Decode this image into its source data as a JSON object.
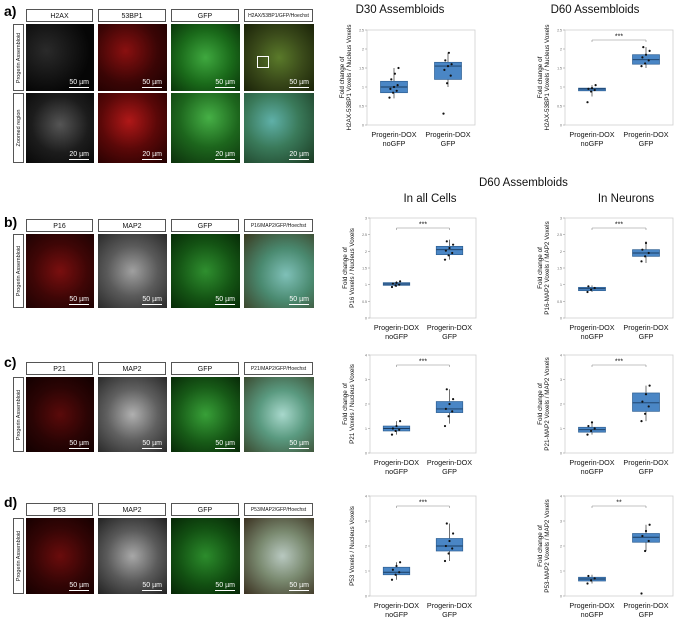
{
  "panel_labels": {
    "a": "a)",
    "b": "b)",
    "c": "c)",
    "d": "d)"
  },
  "section_title": "D60 Assembloids",
  "row_a": {
    "headers": [
      "H2AX",
      "53BP1",
      "GFP",
      "H2AX/53BP1/GFP/Hoechst"
    ],
    "row_labels": [
      "Progerin Assembloid",
      "Zoomed region"
    ],
    "scale_top": [
      "50 µm",
      "50 µm",
      "50 µm",
      "50 µm"
    ],
    "scale_bottom": [
      "20 µm",
      "20 µm",
      "20 µm",
      "20 µm"
    ]
  },
  "row_b": {
    "headers": [
      "P16",
      "MAP2",
      "GFP",
      "P16/MAP2/GFP/Hoechst"
    ],
    "row_label": "Progerin Assembloid",
    "scale": [
      "50 µm",
      "50 µm",
      "50 µm",
      "50 µm"
    ]
  },
  "row_c": {
    "headers": [
      "P21",
      "MAP2",
      "GFP",
      "P21/MAP2/GFP/Hoechst"
    ],
    "row_label": "Progerin Assembloid",
    "scale": [
      "50 µm",
      "50 µm",
      "50 µm",
      "50 µm"
    ]
  },
  "row_d": {
    "headers": [
      "P53",
      "MAP2",
      "GFP",
      "P53/MAP2/GFP/Hoechst"
    ],
    "row_label": "Progerin Assembloid",
    "scale": [
      "50 µm",
      "50 µm",
      "50 µm",
      "50 µm"
    ]
  },
  "colors": {
    "box_fill": "#4a86c5",
    "box_edge": "#2d5f93",
    "point": "#111111"
  },
  "chart_data": [
    {
      "id": "a_d30",
      "type": "box",
      "title": "D30 Assembloids",
      "ylabel": [
        "Fold change of",
        "H2AX-53BP1 Voxels / Nucleus Voxels"
      ],
      "categories": [
        "Progerin-DOX noGFP",
        "Progerin-DOX GFP"
      ],
      "ylim": [
        0,
        2.5
      ],
      "yticks": [
        0,
        0.5,
        1,
        1.5,
        2,
        2.5
      ],
      "significance": "",
      "boxes": [
        {
          "q1": 0.85,
          "median": 1.0,
          "q3": 1.15,
          "whisker_low": 0.7,
          "whisker_high": 1.5,
          "points": [
            0.72,
            0.85,
            0.9,
            0.95,
            1.0,
            1.05,
            1.2,
            1.35,
            1.5
          ]
        },
        {
          "q1": 1.2,
          "median": 1.55,
          "q3": 1.65,
          "whisker_low": 1.0,
          "whisker_high": 1.9,
          "points": [
            0.3,
            1.1,
            1.3,
            1.45,
            1.55,
            1.6,
            1.7,
            1.9
          ]
        }
      ]
    },
    {
      "id": "a_d60",
      "type": "box",
      "title": "D60 Assembloids",
      "ylabel": [
        "Fold change of",
        "H2AX-53BP1 Voxels / Nucleus Voxels"
      ],
      "categories": [
        "Progerin-DOX noGFP",
        "Progerin-DOX GFP"
      ],
      "ylim": [
        0,
        2.5
      ],
      "yticks": [
        0,
        0.5,
        1,
        1.5,
        2,
        2.5
      ],
      "significance": "***",
      "boxes": [
        {
          "q1": 0.9,
          "median": 0.95,
          "q3": 0.97,
          "whisker_low": 0.75,
          "whisker_high": 1.05,
          "points": [
            0.6,
            0.88,
            0.92,
            0.95,
            0.97,
            1.05
          ]
        },
        {
          "q1": 1.6,
          "median": 1.72,
          "q3": 1.85,
          "whisker_low": 1.5,
          "whisker_high": 2.05,
          "points": [
            1.55,
            1.62,
            1.7,
            1.78,
            1.85,
            1.95,
            2.05
          ]
        }
      ]
    },
    {
      "id": "b_all",
      "type": "box",
      "title": "In all Cells",
      "ylabel": [
        "Fold change of",
        "P16 Voxels / Nucleus Voxels"
      ],
      "categories": [
        "Progerin-DOX noGFP",
        "Progerin-DOX GFP"
      ],
      "ylim": [
        0,
        3.0
      ],
      "yticks": [
        0,
        0.5,
        1,
        1.5,
        2,
        2.5,
        3
      ],
      "significance": "***",
      "boxes": [
        {
          "q1": 0.98,
          "median": 1.02,
          "q3": 1.06,
          "whisker_low": 0.93,
          "whisker_high": 1.1,
          "points": [
            0.93,
            0.97,
            1.0,
            1.03,
            1.06,
            1.1
          ]
        },
        {
          "q1": 1.9,
          "median": 2.05,
          "q3": 2.15,
          "whisker_low": 1.75,
          "whisker_high": 2.35,
          "points": [
            1.75,
            1.88,
            1.95,
            2.02,
            2.1,
            2.2,
            2.3
          ]
        }
      ]
    },
    {
      "id": "b_neurons",
      "type": "box",
      "title": "In Neurons",
      "ylabel": [
        "Fold change of",
        "P16-MAP2 Voxels / MAP2 Voxels"
      ],
      "categories": [
        "Progerin-DOX noGFP",
        "Progerin-DOX GFP"
      ],
      "ylim": [
        0,
        3.0
      ],
      "yticks": [
        0,
        0.5,
        1,
        1.5,
        2,
        2.5,
        3
      ],
      "significance": "***",
      "boxes": [
        {
          "q1": 0.82,
          "median": 0.88,
          "q3": 0.92,
          "whisker_low": 0.78,
          "whisker_high": 0.98,
          "points": [
            0.78,
            0.85,
            0.9,
            0.95
          ]
        },
        {
          "q1": 1.85,
          "median": 1.95,
          "q3": 2.05,
          "whisker_low": 1.65,
          "whisker_high": 2.3,
          "points": [
            1.7,
            1.85,
            1.95,
            2.05,
            2.25
          ]
        }
      ]
    },
    {
      "id": "c_all",
      "type": "box",
      "ylabel": [
        "Fold change of",
        "P21 Voxels / Nucleus Voxels"
      ],
      "categories": [
        "Progerin-DOX noGFP",
        "Progerin-DOX GFP"
      ],
      "ylim": [
        0,
        4.0
      ],
      "yticks": [
        0,
        1,
        2,
        3,
        4
      ],
      "significance": "***",
      "boxes": [
        {
          "q1": 0.9,
          "median": 1.0,
          "q3": 1.1,
          "whisker_low": 0.75,
          "whisker_high": 1.3,
          "points": [
            0.75,
            0.9,
            0.95,
            1.0,
            1.1,
            1.3
          ]
        },
        {
          "q1": 1.65,
          "median": 1.8,
          "q3": 2.1,
          "whisker_low": 1.2,
          "whisker_high": 2.6,
          "points": [
            1.1,
            1.5,
            1.7,
            1.8,
            2.0,
            2.2,
            2.6
          ]
        }
      ]
    },
    {
      "id": "c_neurons",
      "type": "box",
      "ylabel": [
        "Fold change of",
        "P21-MAP2 Voxels / MAP2 Voxels"
      ],
      "categories": [
        "Progerin-DOX noGFP",
        "Progerin-DOX GFP"
      ],
      "ylim": [
        0,
        4.0
      ],
      "yticks": [
        0,
        1,
        2,
        3,
        4
      ],
      "significance": "***",
      "boxes": [
        {
          "q1": 0.85,
          "median": 0.95,
          "q3": 1.05,
          "whisker_low": 0.75,
          "whisker_high": 1.25,
          "points": [
            0.75,
            0.9,
            1.0,
            1.1,
            1.25
          ]
        },
        {
          "q1": 1.7,
          "median": 2.05,
          "q3": 2.45,
          "whisker_low": 1.3,
          "whisker_high": 2.75,
          "points": [
            1.3,
            1.6,
            1.9,
            2.1,
            2.4,
            2.75
          ]
        }
      ]
    },
    {
      "id": "d_all",
      "type": "box",
      "ylabel": [
        "P53 Voxels / Nucleus Voxels"
      ],
      "categories": [
        "Progerin-DOX noGFP",
        "Progerin-DOX GFP"
      ],
      "ylim": [
        0,
        4.0
      ],
      "yticks": [
        0,
        1,
        2,
        3,
        4
      ],
      "significance": "***",
      "boxes": [
        {
          "q1": 0.85,
          "median": 0.95,
          "q3": 1.15,
          "whisker_low": 0.65,
          "whisker_high": 1.35,
          "points": [
            0.65,
            0.85,
            0.95,
            1.05,
            1.2,
            1.35
          ]
        },
        {
          "q1": 1.8,
          "median": 2.0,
          "q3": 2.3,
          "whisker_low": 1.4,
          "whisker_high": 2.9,
          "points": [
            1.4,
            1.7,
            1.9,
            2.0,
            2.2,
            2.5,
            2.9
          ]
        }
      ]
    },
    {
      "id": "d_neurons",
      "type": "box",
      "ylabel": [
        "Fold change of",
        "P53-MAP2 Voxels / MAP2 Voxels"
      ],
      "categories": [
        "Progerin-DOX noGFP",
        "Progerin-DOX GFP"
      ],
      "ylim": [
        0,
        4.0
      ],
      "yticks": [
        0,
        1,
        2,
        3,
        4
      ],
      "significance": "**",
      "boxes": [
        {
          "q1": 0.6,
          "median": 0.68,
          "q3": 0.75,
          "whisker_low": 0.5,
          "whisker_high": 0.85,
          "points": [
            0.5,
            0.62,
            0.7,
            0.8
          ]
        },
        {
          "q1": 2.15,
          "median": 2.35,
          "q3": 2.5,
          "whisker_low": 1.8,
          "whisker_high": 2.85,
          "points": [
            0.1,
            1.8,
            2.2,
            2.4,
            2.6,
            2.85
          ]
        }
      ]
    }
  ]
}
